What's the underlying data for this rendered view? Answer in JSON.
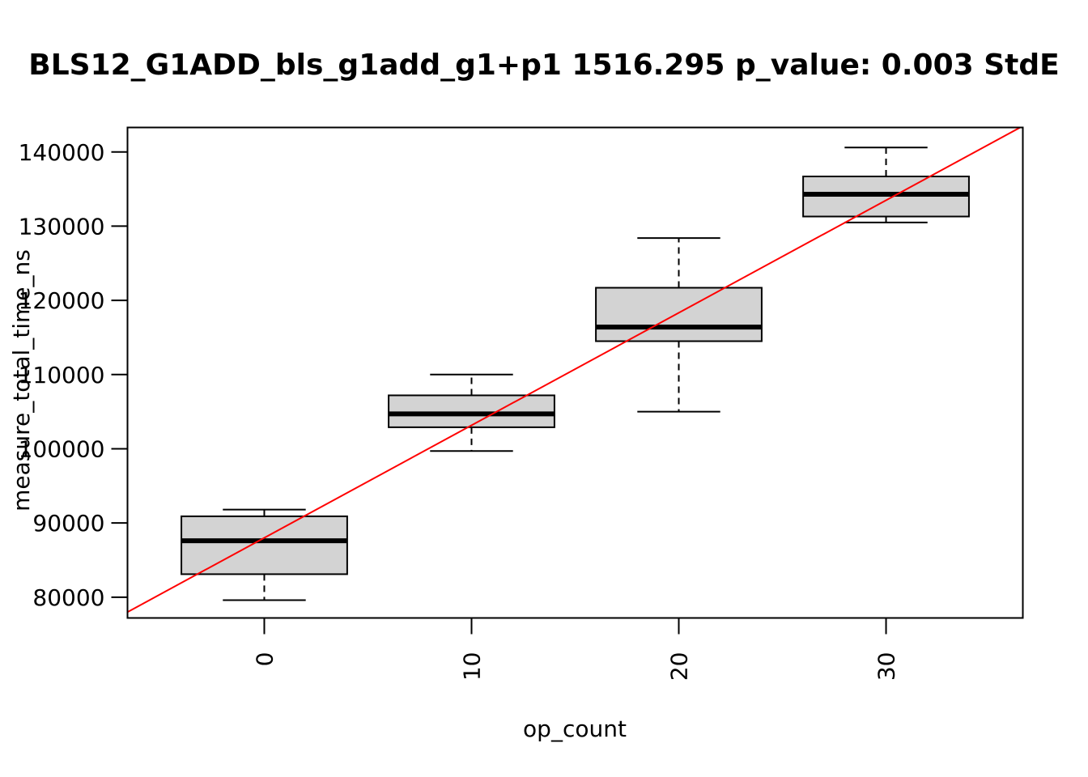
{
  "chart_data": {
    "type": "box",
    "title": "BLS12_G1ADD_bls_g1add_g1+p1 1516.295 p_value: 0.003 StdE",
    "xlabel": "op_count",
    "ylabel": "measure_total_time_ns",
    "x_ticks": [
      "0",
      "10",
      "20",
      "30"
    ],
    "y_ticks": [
      "80000",
      "90000",
      "100000",
      "110000",
      "120000",
      "130000",
      "140000"
    ],
    "xlim": [
      -6.6,
      36.6
    ],
    "ylim": [
      77200,
      143300
    ],
    "boxes": [
      {
        "x": 0,
        "whisker_low": 79600,
        "q1": 83100,
        "median": 87600,
        "q3": 90900,
        "whisker_high": 91800
      },
      {
        "x": 10,
        "whisker_low": 99700,
        "q1": 102900,
        "median": 104700,
        "q3": 107200,
        "whisker_high": 110000
      },
      {
        "x": 20,
        "whisker_low": 105000,
        "q1": 114500,
        "median": 116400,
        "q3": 121700,
        "whisker_high": 128400
      },
      {
        "x": 30,
        "whisker_low": 130500,
        "q1": 131300,
        "median": 134300,
        "q3": 136700,
        "whisker_high": 140600
      }
    ],
    "box_half_width": 4,
    "regression_line": {
      "slope": 1516.295,
      "intercept": 88000,
      "color": "#ff0000"
    },
    "box_fill": "#d3d3d3",
    "grid": false,
    "legend": "none"
  }
}
